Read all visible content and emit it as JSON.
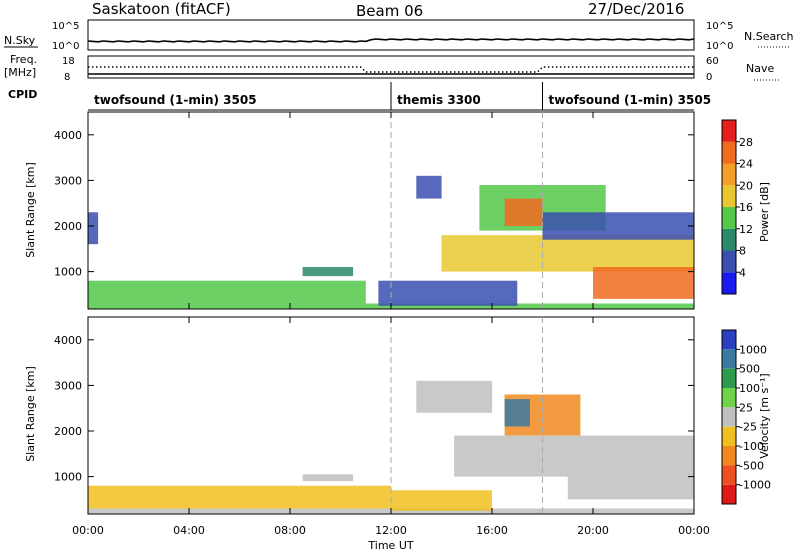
{
  "header": {
    "station": "Saskatoon (fitACF)",
    "beam": "Beam 06",
    "date": "27/Dec/2016"
  },
  "top_panels": {
    "nsky_label": "N.Sky",
    "nsearch_label": "N.Search",
    "count_ticks_left": [
      "10^5",
      "10^0"
    ],
    "count_ticks_right": [
      "10^5",
      "10^0"
    ],
    "freq_label_1": "Freq.",
    "freq_label_2": "[MHz]",
    "freq_ticks": [
      "18",
      "8"
    ],
    "nave_label": "Nave",
    "nave_ticks": [
      "60",
      "0"
    ],
    "cpid_label": "CPID",
    "modes": [
      {
        "label": "twofsound (1-min) 3505",
        "start_hour": 0
      },
      {
        "label": "themis 3300",
        "start_hour": 12
      },
      {
        "label": "twofsound (1-min) 3505",
        "start_hour": 18
      }
    ]
  },
  "axes": {
    "ylabel": "Slant Range [km]",
    "xlabel": "Time UT",
    "x_ticks": [
      "00:00",
      "04:00",
      "08:00",
      "12:00",
      "16:00",
      "20:00",
      "00:00"
    ],
    "y_ticks": [
      "1000",
      "2000",
      "3000",
      "4000"
    ]
  },
  "power_colorbar": {
    "label": "Power [dB]",
    "ticks": [
      "4",
      "8",
      "12",
      "16",
      "20",
      "24",
      "28"
    ],
    "colors": [
      "#1a1af0",
      "#3a4fb0",
      "#2a8a6a",
      "#54c84a",
      "#e8c830",
      "#f4a028",
      "#f06a20",
      "#e61e1e"
    ]
  },
  "velocity_colorbar": {
    "label": "Velocity [m s⁻¹]",
    "ticks": [
      "1000",
      "500",
      "100",
      "25",
      "-25",
      "-100",
      "-500",
      "-1000"
    ],
    "colors": [
      "#2a40c0",
      "#3a7aa0",
      "#2e9a4e",
      "#6ed24a",
      "#c0c0c0",
      "#f0c020",
      "#f08a20",
      "#ec5020",
      "#e01818"
    ]
  },
  "chart_data": {
    "type": "heatmap",
    "x_unit": "hours UT",
    "x_range": [
      0,
      24
    ],
    "y_range": [
      180,
      4500
    ],
    "panels": [
      {
        "name": "Power",
        "regions": [
          {
            "t0": 0,
            "t1": 24,
            "r0": 180,
            "r1": 300,
            "value": 12
          },
          {
            "t0": 0,
            "t1": 11,
            "r0": 300,
            "r1": 800,
            "value": 14
          },
          {
            "t0": 0,
            "t1": 0.4,
            "r0": 1600,
            "r1": 2300,
            "value": 6
          },
          {
            "t0": 8.5,
            "t1": 10.5,
            "r0": 900,
            "r1": 1100,
            "value": 10
          },
          {
            "t0": 11.5,
            "t1": 17,
            "r0": 250,
            "r1": 800,
            "value": 6
          },
          {
            "t0": 14,
            "t1": 24,
            "r0": 1000,
            "r1": 1800,
            "value": 16
          },
          {
            "t0": 15.5,
            "t1": 20.5,
            "r0": 1900,
            "r1": 2900,
            "value": 14
          },
          {
            "t0": 16.5,
            "t1": 18,
            "r0": 2000,
            "r1": 2600,
            "value": 24
          },
          {
            "t0": 20,
            "t1": 24,
            "r0": 400,
            "r1": 1100,
            "value": 26
          },
          {
            "t0": 13,
            "t1": 14,
            "r0": 2600,
            "r1": 3100,
            "value": 6
          },
          {
            "t0": 18,
            "t1": 24,
            "r0": 1700,
            "r1": 2300,
            "value": 6
          }
        ]
      },
      {
        "name": "Velocity",
        "regions": [
          {
            "t0": 0,
            "t1": 24,
            "r0": 180,
            "r1": 300,
            "value": 0
          },
          {
            "t0": 0,
            "t1": 12,
            "r0": 300,
            "r1": 800,
            "value": -100
          },
          {
            "t0": 8.5,
            "t1": 10.5,
            "r0": 900,
            "r1": 1050,
            "value": 0
          },
          {
            "t0": 12,
            "t1": 16,
            "r0": 250,
            "r1": 700,
            "value": -100
          },
          {
            "t0": 14.5,
            "t1": 24,
            "r0": 1000,
            "r1": 1900,
            "value": 0
          },
          {
            "t0": 16.5,
            "t1": 19.5,
            "r0": 1900,
            "r1": 2800,
            "value": -500
          },
          {
            "t0": 16.5,
            "t1": 17.5,
            "r0": 2100,
            "r1": 2700,
            "value": 500
          },
          {
            "t0": 13,
            "t1": 16,
            "r0": 2400,
            "r1": 3100,
            "value": 0
          },
          {
            "t0": 19,
            "t1": 24,
            "r0": 500,
            "r1": 1000,
            "value": 0
          }
        ]
      }
    ]
  }
}
